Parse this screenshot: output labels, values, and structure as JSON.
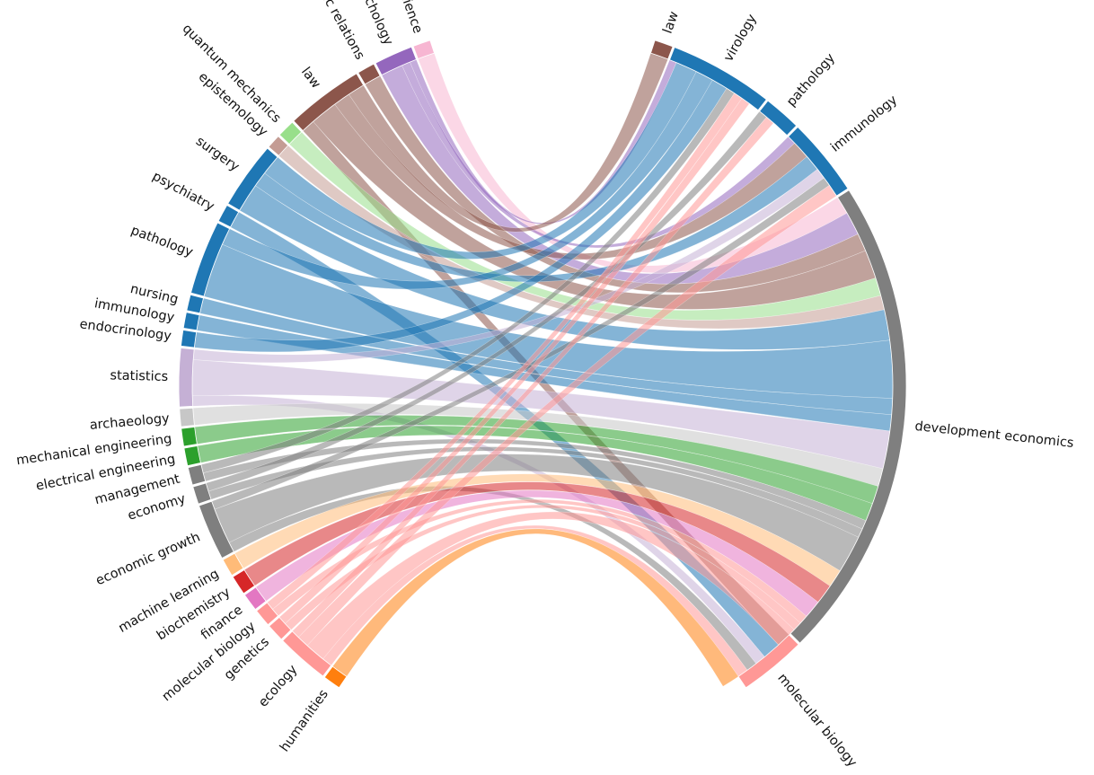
{
  "diagram": {
    "type": "bipartite-chord",
    "left_nodes": [
      {
        "label": "social science",
        "value": 1,
        "color": "#f7b6d2"
      },
      {
        "label": "social psychology",
        "value": 2.2,
        "color": "#9467bd"
      },
      {
        "label": "public relations",
        "value": 1,
        "color": "#8c564b"
      },
      {
        "label": "law",
        "value": 4.4,
        "color": "#8c564b"
      },
      {
        "label": "quantum mechanics",
        "value": 1,
        "color": "#98df8a"
      },
      {
        "label": "epistemology",
        "value": 0.8,
        "color": "#c49c94"
      },
      {
        "label": "surgery",
        "value": 3.8,
        "color": "#1f77b4"
      },
      {
        "label": "psychiatry",
        "value": 1,
        "color": "#1f77b4"
      },
      {
        "label": "pathology",
        "value": 4.2,
        "color": "#1f77b4"
      },
      {
        "label": "nursing",
        "value": 0.9,
        "color": "#1f77b4"
      },
      {
        "label": "immunology",
        "value": 0.9,
        "color": "#1f77b4"
      },
      {
        "label": "endocrinology",
        "value": 0.9,
        "color": "#1f77b4"
      },
      {
        "label": "statistics",
        "value": 3.3,
        "color": "#c5b0d5"
      },
      {
        "label": "archaeology",
        "value": 1,
        "color": "#c7c7c7"
      },
      {
        "label": "mechanical engineering",
        "value": 1,
        "color": "#2ca02c"
      },
      {
        "label": "electrical engineering",
        "value": 1,
        "color": "#2ca02c"
      },
      {
        "label": "management",
        "value": 1,
        "color": "#7f7f7f"
      },
      {
        "label": "economy",
        "value": 1,
        "color": "#7f7f7f"
      },
      {
        "label": "economic growth",
        "value": 3.2,
        "color": "#7f7f7f"
      },
      {
        "label": "machine learning",
        "value": 1,
        "color": "#ffbb78"
      },
      {
        "label": "biochemistry",
        "value": 1.1,
        "color": "#d62728"
      },
      {
        "label": "finance",
        "value": 1,
        "color": "#e377c2"
      },
      {
        "label": "molecular biology",
        "value": 1,
        "color": "#ff9896"
      },
      {
        "label": "genetics",
        "value": 1,
        "color": "#ff9896"
      },
      {
        "label": "ecology",
        "value": 3,
        "color": "#ff9896"
      },
      {
        "label": "humanities",
        "value": 1,
        "color": "#ff7f0e"
      }
    ],
    "right_nodes": [
      {
        "label": "law",
        "value": 1,
        "color": "#8c564b"
      },
      {
        "label": "virology",
        "value": 5.6,
        "color": "#1f77b4"
      },
      {
        "label": "pathology",
        "value": 2,
        "color": "#1f77b4"
      },
      {
        "label": "immunology",
        "value": 4.2,
        "color": "#1f77b4"
      },
      {
        "label": "development economics",
        "value": 26,
        "color": "#7f7f7f"
      },
      {
        "label": "molecular biology",
        "value": 3.6,
        "color": "#ff9896"
      }
    ],
    "links": [
      {
        "source": "social science",
        "target": "development economics",
        "value": 1,
        "color": "#f7b6d2"
      },
      {
        "source": "social psychology",
        "target": "virology",
        "value": 0.4,
        "color": "#9467bd"
      },
      {
        "source": "social psychology",
        "target": "immunology",
        "value": 0.5,
        "color": "#9467bd"
      },
      {
        "source": "social psychology",
        "target": "development economics",
        "value": 1.3,
        "color": "#9467bd"
      },
      {
        "source": "public relations",
        "target": "development economics",
        "value": 1,
        "color": "#8c564b"
      },
      {
        "source": "law",
        "target": "law",
        "value": 1,
        "color": "#8c564b"
      },
      {
        "source": "law",
        "target": "immunology",
        "value": 1,
        "color": "#8c564b"
      },
      {
        "source": "law",
        "target": "development economics",
        "value": 1.6,
        "color": "#8c564b"
      },
      {
        "source": "law",
        "target": "molecular biology",
        "value": 0.8,
        "color": "#8c564b"
      },
      {
        "source": "quantum mechanics",
        "target": "development economics",
        "value": 1,
        "color": "#98df8a"
      },
      {
        "source": "epistemology",
        "target": "development economics",
        "value": 0.8,
        "color": "#c49c94"
      },
      {
        "source": "surgery",
        "target": "virology",
        "value": 1.2,
        "color": "#1f77b4"
      },
      {
        "source": "surgery",
        "target": "immunology",
        "value": 0.9,
        "color": "#1f77b4"
      },
      {
        "source": "surgery",
        "target": "development economics",
        "value": 1.7,
        "color": "#1f77b4"
      },
      {
        "source": "psychiatry",
        "target": "molecular biology",
        "value": 1,
        "color": "#1f77b4"
      },
      {
        "source": "pathology",
        "target": "virology",
        "value": 1,
        "color": "#1f77b4"
      },
      {
        "source": "pathology",
        "target": "development economics",
        "value": 3.2,
        "color": "#1f77b4"
      },
      {
        "source": "nursing",
        "target": "development economics",
        "value": 0.9,
        "color": "#1f77b4"
      },
      {
        "source": "immunology",
        "target": "development economics",
        "value": 0.9,
        "color": "#1f77b4"
      },
      {
        "source": "endocrinology",
        "target": "virology",
        "value": 0.9,
        "color": "#1f77b4"
      },
      {
        "source": "statistics",
        "target": "immunology",
        "value": 0.6,
        "color": "#c5b0d5"
      },
      {
        "source": "statistics",
        "target": "development economics",
        "value": 2.1,
        "color": "#c5b0d5"
      },
      {
        "source": "statistics",
        "target": "molecular biology",
        "value": 0.6,
        "color": "#c5b0d5"
      },
      {
        "source": "archaeology",
        "target": "development economics",
        "value": 1,
        "color": "#c7c7c7"
      },
      {
        "source": "mechanical engineering",
        "target": "development economics",
        "value": 1,
        "color": "#2ca02c"
      },
      {
        "source": "electrical engineering",
        "target": "development economics",
        "value": 1,
        "color": "#2ca02c"
      },
      {
        "source": "management",
        "target": "virology",
        "value": 0.5,
        "color": "#7f7f7f"
      },
      {
        "source": "management",
        "target": "development economics",
        "value": 0.5,
        "color": "#7f7f7f"
      },
      {
        "source": "economy",
        "target": "pathology",
        "value": 0.5,
        "color": "#7f7f7f"
      },
      {
        "source": "economy",
        "target": "development economics",
        "value": 0.5,
        "color": "#7f7f7f"
      },
      {
        "source": "economic growth",
        "target": "immunology",
        "value": 0.5,
        "color": "#7f7f7f"
      },
      {
        "source": "economic growth",
        "target": "development economics",
        "value": 2.1,
        "color": "#7f7f7f"
      },
      {
        "source": "economic growth",
        "target": "molecular biology",
        "value": 0.6,
        "color": "#7f7f7f"
      },
      {
        "source": "machine learning",
        "target": "development economics",
        "value": 1,
        "color": "#ffbb78"
      },
      {
        "source": "biochemistry",
        "target": "development economics",
        "value": 1.1,
        "color": "#d62728"
      },
      {
        "source": "finance",
        "target": "development economics",
        "value": 1,
        "color": "#e377c2"
      },
      {
        "source": "molecular biology",
        "target": "virology",
        "value": 0.5,
        "color": "#ff9896"
      },
      {
        "source": "molecular biology",
        "target": "development economics",
        "value": 0.5,
        "color": "#ff9896"
      },
      {
        "source": "genetics",
        "target": "virology",
        "value": 0.5,
        "color": "#ff9896"
      },
      {
        "source": "genetics",
        "target": "development economics",
        "value": 0.5,
        "color": "#ff9896"
      },
      {
        "source": "ecology",
        "target": "pathology",
        "value": 0.5,
        "color": "#ff9896"
      },
      {
        "source": "ecology",
        "target": "immunology",
        "value": 0.7,
        "color": "#ff9896"
      },
      {
        "source": "ecology",
        "target": "development economics",
        "value": 1.2,
        "color": "#ff9896"
      },
      {
        "source": "ecology",
        "target": "molecular biology",
        "value": 0.6,
        "color": "#ff9896"
      },
      {
        "source": "humanities",
        "target": "molecular biology",
        "value": 1,
        "color": "#ff7f0e"
      }
    ]
  }
}
